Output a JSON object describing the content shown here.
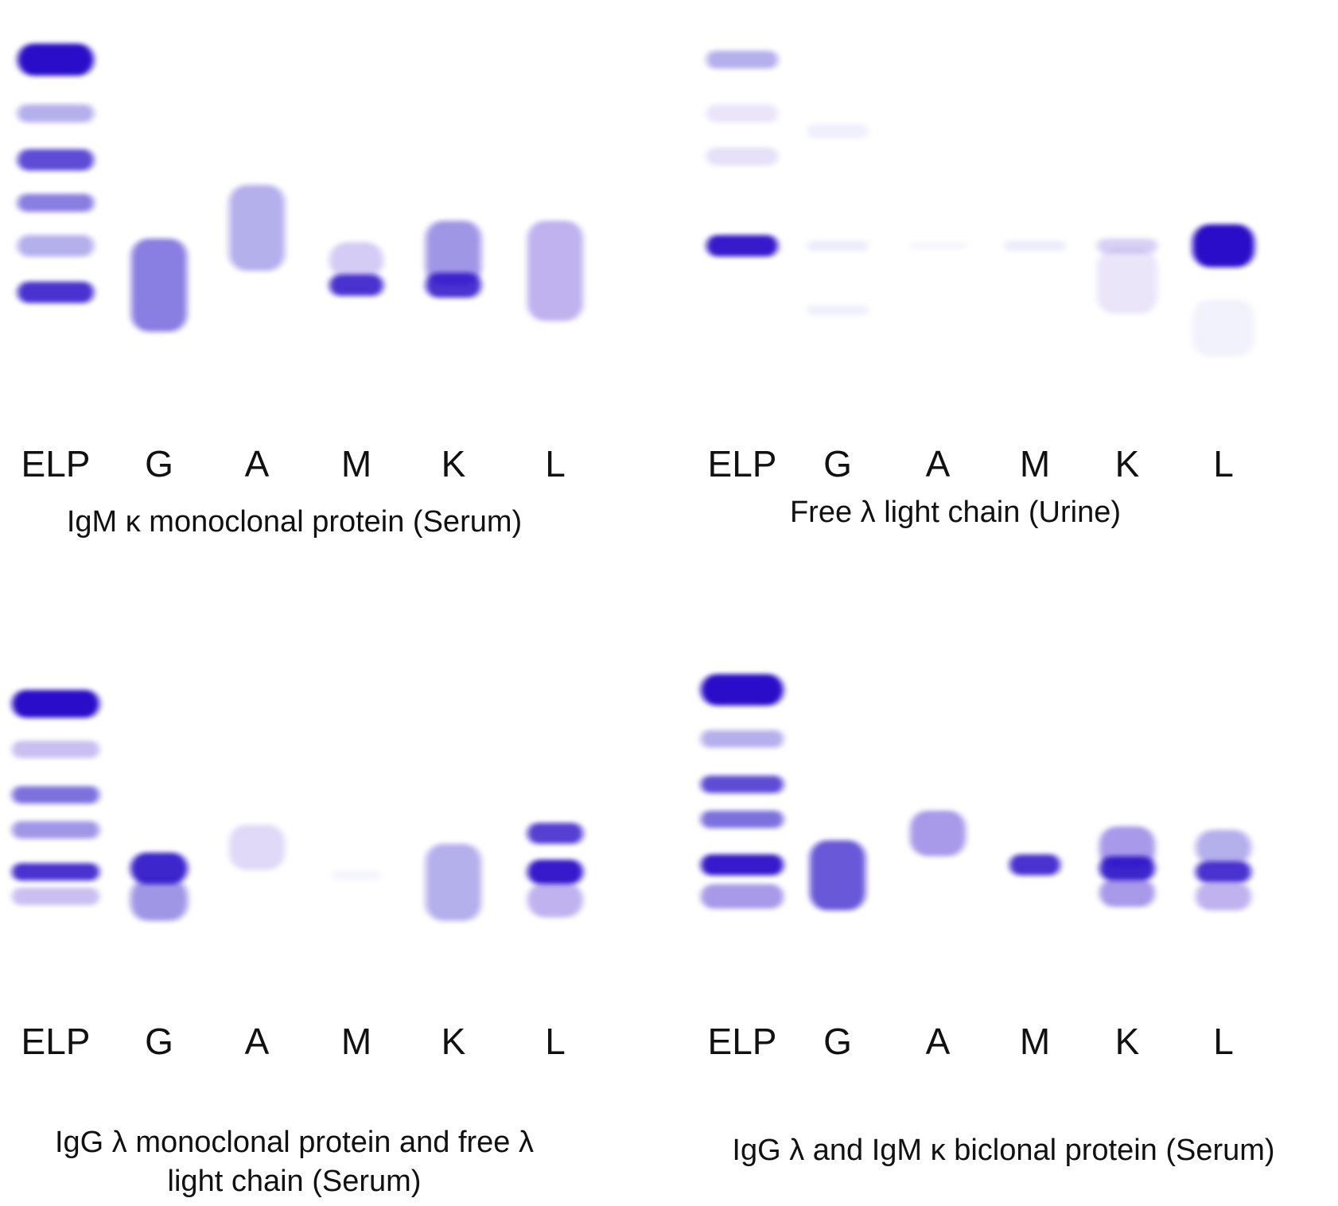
{
  "lane_labels": [
    "ELP",
    "G",
    "A",
    "M",
    "K",
    "L"
  ],
  "band_color": "#2a10c8",
  "panels": [
    {
      "caption": "IgM κ monoclonal protein (Serum)",
      "lanes": [
        {
          "label": "ELP",
          "bands": [
            {
              "pos": 0.1,
              "intensity": 1.0,
              "thick": 0.09
            },
            {
              "pos": 0.25,
              "intensity": 0.35,
              "thick": 0.05
            },
            {
              "pos": 0.38,
              "intensity": 0.75,
              "thick": 0.06
            },
            {
              "pos": 0.5,
              "intensity": 0.55,
              "thick": 0.05
            },
            {
              "pos": 0.62,
              "intensity": 0.35,
              "thick": 0.06
            },
            {
              "pos": 0.75,
              "intensity": 0.85,
              "thick": 0.06
            }
          ]
        },
        {
          "label": "G",
          "bands": [
            {
              "pos": 0.73,
              "intensity": 0.55,
              "thick": 0.26
            }
          ]
        },
        {
          "label": "A",
          "bands": [
            {
              "pos": 0.57,
              "intensity": 0.35,
              "thick": 0.24
            }
          ]
        },
        {
          "label": "M",
          "bands": [
            {
              "pos": 0.66,
              "intensity": 0.2,
              "thick": 0.1
            },
            {
              "pos": 0.73,
              "intensity": 0.85,
              "thick": 0.06
            }
          ]
        },
        {
          "label": "K",
          "bands": [
            {
              "pos": 0.64,
              "intensity": 0.45,
              "thick": 0.18
            },
            {
              "pos": 0.73,
              "intensity": 0.85,
              "thick": 0.07
            }
          ]
        },
        {
          "label": "L",
          "bands": [
            {
              "pos": 0.69,
              "intensity": 0.3,
              "thick": 0.28
            }
          ]
        }
      ]
    },
    {
      "caption": "Free λ light chain (Urine)",
      "lanes": [
        {
          "label": "ELP",
          "bands": [
            {
              "pos": 0.1,
              "intensity": 0.35,
              "thick": 0.05
            },
            {
              "pos": 0.25,
              "intensity": 0.1,
              "thick": 0.05
            },
            {
              "pos": 0.37,
              "intensity": 0.12,
              "thick": 0.05
            },
            {
              "pos": 0.62,
              "intensity": 0.95,
              "thick": 0.06
            }
          ]
        },
        {
          "label": "G",
          "bands": [
            {
              "pos": 0.3,
              "intensity": 0.06,
              "thick": 0.04
            },
            {
              "pos": 0.62,
              "intensity": 0.07,
              "thick": 0.03
            },
            {
              "pos": 0.8,
              "intensity": 0.06,
              "thick": 0.03
            }
          ]
        },
        {
          "label": "A",
          "bands": [
            {
              "pos": 0.62,
              "intensity": 0.04,
              "thick": 0.02
            }
          ]
        },
        {
          "label": "M",
          "bands": [
            {
              "pos": 0.62,
              "intensity": 0.07,
              "thick": 0.03
            }
          ]
        },
        {
          "label": "K",
          "bands": [
            {
              "pos": 0.62,
              "intensity": 0.18,
              "thick": 0.04
            },
            {
              "pos": 0.72,
              "intensity": 0.1,
              "thick": 0.18
            }
          ]
        },
        {
          "label": "L",
          "bands": [
            {
              "pos": 0.62,
              "intensity": 1.0,
              "thick": 0.12
            },
            {
              "pos": 0.85,
              "intensity": 0.05,
              "thick": 0.16
            }
          ]
        }
      ]
    },
    {
      "caption": "IgG λ monoclonal protein and free λ\nlight chain (Serum)",
      "lanes": [
        {
          "label": "ELP",
          "bands": [
            {
              "pos": 0.22,
              "intensity": 1.0,
              "thick": 0.08
            },
            {
              "pos": 0.35,
              "intensity": 0.25,
              "thick": 0.05
            },
            {
              "pos": 0.48,
              "intensity": 0.6,
              "thick": 0.05
            },
            {
              "pos": 0.58,
              "intensity": 0.45,
              "thick": 0.05
            },
            {
              "pos": 0.7,
              "intensity": 0.85,
              "thick": 0.05
            },
            {
              "pos": 0.77,
              "intensity": 0.25,
              "thick": 0.05
            }
          ]
        },
        {
          "label": "G",
          "bands": [
            {
              "pos": 0.69,
              "intensity": 0.9,
              "thick": 0.09
            },
            {
              "pos": 0.78,
              "intensity": 0.45,
              "thick": 0.12
            }
          ]
        },
        {
          "label": "A",
          "bands": [
            {
              "pos": 0.63,
              "intensity": 0.15,
              "thick": 0.13
            }
          ]
        },
        {
          "label": "M",
          "bands": [
            {
              "pos": 0.71,
              "intensity": 0.04,
              "thick": 0.03
            }
          ]
        },
        {
          "label": "K",
          "bands": [
            {
              "pos": 0.73,
              "intensity": 0.35,
              "thick": 0.22
            }
          ]
        },
        {
          "label": "L",
          "bands": [
            {
              "pos": 0.59,
              "intensity": 0.8,
              "thick": 0.06
            },
            {
              "pos": 0.7,
              "intensity": 0.95,
              "thick": 0.07
            },
            {
              "pos": 0.78,
              "intensity": 0.3,
              "thick": 0.1
            }
          ]
        }
      ]
    },
    {
      "caption": "IgG λ and IgM κ biclonal protein (Serum)",
      "lanes": [
        {
          "label": "ELP",
          "bands": [
            {
              "pos": 0.18,
              "intensity": 1.0,
              "thick": 0.09
            },
            {
              "pos": 0.32,
              "intensity": 0.35,
              "thick": 0.05
            },
            {
              "pos": 0.45,
              "intensity": 0.75,
              "thick": 0.05
            },
            {
              "pos": 0.55,
              "intensity": 0.6,
              "thick": 0.05
            },
            {
              "pos": 0.68,
              "intensity": 0.95,
              "thick": 0.06
            },
            {
              "pos": 0.77,
              "intensity": 0.4,
              "thick": 0.07
            }
          ]
        },
        {
          "label": "G",
          "bands": [
            {
              "pos": 0.71,
              "intensity": 0.7,
              "thick": 0.2
            }
          ]
        },
        {
          "label": "A",
          "bands": [
            {
              "pos": 0.59,
              "intensity": 0.4,
              "thick": 0.13
            }
          ]
        },
        {
          "label": "M",
          "bands": [
            {
              "pos": 0.68,
              "intensity": 0.85,
              "thick": 0.06
            }
          ]
        },
        {
          "label": "K",
          "bands": [
            {
              "pos": 0.63,
              "intensity": 0.4,
              "thick": 0.12
            },
            {
              "pos": 0.69,
              "intensity": 0.9,
              "thick": 0.07
            },
            {
              "pos": 0.76,
              "intensity": 0.4,
              "thick": 0.08
            }
          ]
        },
        {
          "label": "L",
          "bands": [
            {
              "pos": 0.63,
              "intensity": 0.35,
              "thick": 0.1
            },
            {
              "pos": 0.7,
              "intensity": 0.85,
              "thick": 0.06
            },
            {
              "pos": 0.77,
              "intensity": 0.3,
              "thick": 0.08
            }
          ]
        }
      ]
    }
  ]
}
